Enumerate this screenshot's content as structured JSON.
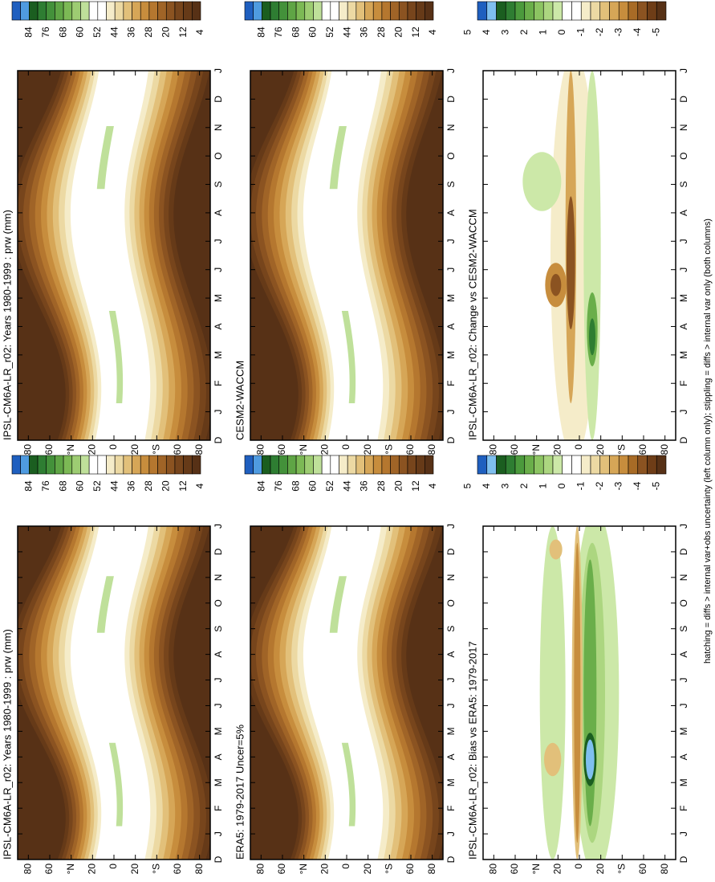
{
  "chart_data": [
    {
      "type": "contour",
      "field": "mean",
      "title": "IPSL-CM6A-LR_r02: Years 1980-1999 : prw (mm)",
      "categories": [
        "D",
        "J",
        "F",
        "M",
        "A",
        "M",
        "J",
        "J",
        "A",
        "S",
        "O",
        "N",
        "D",
        "J"
      ],
      "ylim": [
        -90,
        90
      ],
      "yticks": [
        {
          "value": 80,
          "label": "80"
        },
        {
          "value": 60,
          "label": "60"
        },
        {
          "value": 40,
          "label": "°N"
        },
        {
          "value": 20,
          "label": "20"
        },
        0,
        {
          "value": -20,
          "label": "20"
        },
        {
          "value": -40,
          "label": "°S"
        },
        {
          "value": -60,
          "label": "60"
        },
        {
          "value": -80,
          "label": "80"
        }
      ],
      "colorbar": {
        "colors": [
          "#1f5fbf",
          "#4f9be0",
          "#1b5e20",
          "#2e7d32",
          "#43913a",
          "#5fa545",
          "#7cb955",
          "#9dcc72",
          "#bfe09a",
          "#ffffff",
          "#ffffff",
          "#f5ecc9",
          "#ecd9a3",
          "#e2c07a",
          "#d6a657",
          "#c78d3d",
          "#b5772f",
          "#a06427",
          "#8b5321",
          "#77451c",
          "#663a18",
          "#573116"
        ],
        "ticks": [
          84,
          76,
          68,
          60,
          52,
          44,
          36,
          28,
          20,
          12,
          4
        ]
      }
    },
    {
      "type": "contour",
      "field": "mean",
      "title": "IPSL-CM6A-LR_r02: Years 1980-1999 : prw (mm)",
      "categories": [
        "D",
        "J",
        "F",
        "M",
        "A",
        "M",
        "J",
        "J",
        "A",
        "S",
        "O",
        "N",
        "D",
        "J"
      ],
      "ylim": [
        -90,
        90
      ],
      "yticks": [
        {
          "value": 80,
          "label": "80"
        },
        {
          "value": 60,
          "label": "60"
        },
        {
          "value": 40,
          "label": "°N"
        },
        {
          "value": 20,
          "label": "20"
        },
        0,
        {
          "value": -20,
          "label": "20"
        },
        {
          "value": -40,
          "label": "°S"
        },
        {
          "value": -60,
          "label": "60"
        },
        {
          "value": -80,
          "label": "80"
        }
      ],
      "colorbar": {
        "colors": [
          "#1f5fbf",
          "#4f9be0",
          "#1b5e20",
          "#2e7d32",
          "#43913a",
          "#5fa545",
          "#7cb955",
          "#9dcc72",
          "#bfe09a",
          "#ffffff",
          "#ffffff",
          "#f5ecc9",
          "#ecd9a3",
          "#e2c07a",
          "#d6a657",
          "#c78d3d",
          "#b5772f",
          "#a06427",
          "#8b5321",
          "#77451c",
          "#663a18",
          "#573116"
        ],
        "ticks": [
          84,
          76,
          68,
          60,
          52,
          44,
          36,
          28,
          20,
          12,
          4
        ]
      }
    },
    {
      "type": "contour",
      "field": "mean",
      "title": "ERA5: 1979-2017 Uncer=5%",
      "categories": [
        "D",
        "J",
        "F",
        "M",
        "A",
        "M",
        "J",
        "J",
        "A",
        "S",
        "O",
        "N",
        "D",
        "J"
      ],
      "ylim": [
        -90,
        90
      ],
      "yticks": [
        {
          "value": 80,
          "label": "80"
        },
        {
          "value": 60,
          "label": "60"
        },
        {
          "value": 40,
          "label": "°N"
        },
        {
          "value": 20,
          "label": "20"
        },
        0,
        {
          "value": -20,
          "label": "20"
        },
        {
          "value": -40,
          "label": "°S"
        },
        {
          "value": -60,
          "label": "60"
        },
        {
          "value": -80,
          "label": "80"
        }
      ],
      "colorbar": {
        "colors": [
          "#1f5fbf",
          "#4f9be0",
          "#1b5e20",
          "#2e7d32",
          "#43913a",
          "#5fa545",
          "#7cb955",
          "#9dcc72",
          "#bfe09a",
          "#ffffff",
          "#ffffff",
          "#f5ecc9",
          "#ecd9a3",
          "#e2c07a",
          "#d6a657",
          "#c78d3d",
          "#b5772f",
          "#a06427",
          "#8b5321",
          "#77451c",
          "#663a18",
          "#573116"
        ],
        "ticks": [
          84,
          76,
          68,
          60,
          52,
          44,
          36,
          28,
          20,
          12,
          4
        ]
      }
    },
    {
      "type": "contour",
      "field": "mean",
      "title": "CESM2-WACCM",
      "categories": [
        "D",
        "J",
        "F",
        "M",
        "A",
        "M",
        "J",
        "J",
        "A",
        "S",
        "O",
        "N",
        "D",
        "J"
      ],
      "ylim": [
        -90,
        90
      ],
      "yticks": [
        {
          "value": 80,
          "label": "80"
        },
        {
          "value": 60,
          "label": "60"
        },
        {
          "value": 40,
          "label": "°N"
        },
        {
          "value": 20,
          "label": "20"
        },
        0,
        {
          "value": -20,
          "label": "20"
        },
        {
          "value": -40,
          "label": "°S"
        },
        {
          "value": -60,
          "label": "60"
        },
        {
          "value": -80,
          "label": "80"
        }
      ],
      "colorbar": {
        "colors": [
          "#1f5fbf",
          "#4f9be0",
          "#1b5e20",
          "#2e7d32",
          "#43913a",
          "#5fa545",
          "#7cb955",
          "#9dcc72",
          "#bfe09a",
          "#ffffff",
          "#ffffff",
          "#f5ecc9",
          "#ecd9a3",
          "#e2c07a",
          "#d6a657",
          "#c78d3d",
          "#b5772f",
          "#a06427",
          "#8b5321",
          "#77451c",
          "#663a18",
          "#573116"
        ],
        "ticks": [
          84,
          76,
          68,
          60,
          52,
          44,
          36,
          28,
          20,
          12,
          4
        ]
      }
    },
    {
      "type": "contour",
      "field": "bias",
      "title": "IPSL-CM6A-LR_r02: Bias vs ERA5: 1979-2017",
      "categories": [
        "D",
        "J",
        "F",
        "M",
        "A",
        "M",
        "J",
        "J",
        "A",
        "S",
        "O",
        "N",
        "D",
        "J"
      ],
      "ylim": [
        -90,
        90
      ],
      "yticks": [
        {
          "value": 80,
          "label": "80"
        },
        {
          "value": 60,
          "label": "60"
        },
        {
          "value": 40,
          "label": "°N"
        },
        {
          "value": 20,
          "label": "20"
        },
        0,
        {
          "value": -20,
          "label": "20"
        },
        {
          "value": -40,
          "label": "°S"
        },
        {
          "value": -60,
          "label": "60"
        },
        {
          "value": -80,
          "label": "80"
        }
      ],
      "colorbar": {
        "colors": [
          "#1f5fbf",
          "#7fbfef",
          "#1b5e20",
          "#2e7d32",
          "#4b9a3c",
          "#6aae4a",
          "#8cc462",
          "#acd680",
          "#cce8a8",
          "#ffffff",
          "#ffffff",
          "#f5ecc9",
          "#ecd9a3",
          "#e2c07a",
          "#d6a657",
          "#c78d3d",
          "#a86b26",
          "#8b5321",
          "#6e3d17",
          "#573116"
        ],
        "ticks": [
          5,
          4,
          3,
          2,
          1,
          0,
          -1,
          -2,
          -3,
          -4,
          -5
        ]
      }
    },
    {
      "type": "contour",
      "field": "change",
      "title": "IPSL-CM6A-LR_r02: Change vs CESM2-WACCM",
      "categories": [
        "D",
        "J",
        "F",
        "M",
        "A",
        "M",
        "J",
        "J",
        "A",
        "S",
        "O",
        "N",
        "D",
        "J"
      ],
      "ylim": [
        -90,
        90
      ],
      "yticks": [
        {
          "value": 80,
          "label": "80"
        },
        {
          "value": 60,
          "label": "60"
        },
        {
          "value": 40,
          "label": "°N"
        },
        {
          "value": 20,
          "label": "20"
        },
        0,
        {
          "value": -20,
          "label": "20"
        },
        {
          "value": -40,
          "label": "°S"
        },
        {
          "value": -60,
          "label": "60"
        },
        {
          "value": -80,
          "label": "80"
        }
      ],
      "colorbar": {
        "colors": [
          "#1f5fbf",
          "#7fbfef",
          "#1b5e20",
          "#2e7d32",
          "#4b9a3c",
          "#6aae4a",
          "#8cc462",
          "#acd680",
          "#cce8a8",
          "#ffffff",
          "#ffffff",
          "#f5ecc9",
          "#ecd9a3",
          "#e2c07a",
          "#d6a657",
          "#c78d3d",
          "#a86b26",
          "#8b5321",
          "#6e3d17",
          "#573116"
        ],
        "ticks": [
          5,
          4,
          3,
          2,
          1,
          0,
          -1,
          -2,
          -3,
          -4,
          -5
        ]
      }
    }
  ],
  "footer": "hatching = diffs > internal var+obs uncertainty (left column only); stippling = diffs > internal var only (both columns)"
}
